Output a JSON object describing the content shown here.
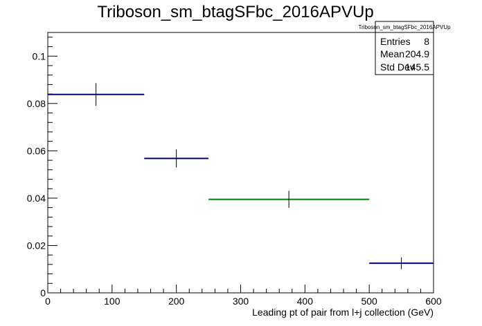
{
  "chart_data": {
    "type": "histogram",
    "title": "Triboson_sm_btagSFbc_2016APVUp",
    "xlabel": "Leading pt of pair from l+j collection (GeV)",
    "ylabel": "",
    "xlim": [
      0,
      600
    ],
    "ylim": [
      0,
      0.11
    ],
    "x_ticks": [
      "0",
      "100",
      "200",
      "300",
      "400",
      "500",
      "600"
    ],
    "y_ticks": [
      "0",
      "0.02",
      "0.04",
      "0.06",
      "0.08",
      "0.1"
    ],
    "bins": [
      {
        "x_low": 0,
        "x_high": 150,
        "value": 0.0838,
        "error": 0.0048,
        "color": "#000080"
      },
      {
        "x_low": 150,
        "x_high": 250,
        "value": 0.0568,
        "error": 0.0038,
        "color": "#000080"
      },
      {
        "x_low": 250,
        "x_high": 500,
        "value": 0.0395,
        "error": 0.0036,
        "color": "#008000"
      },
      {
        "x_low": 500,
        "x_high": 600,
        "value": 0.0125,
        "error": 0.0025,
        "color": "#000080"
      }
    ],
    "stats": {
      "title": "Triboson_sm_btagSFbc_2016APVUp",
      "rows": [
        {
          "label": "Entries",
          "value": "8"
        },
        {
          "label": "Mean",
          "value": "204.9"
        },
        {
          "label": "Std Dev",
          "value": "145.5"
        }
      ]
    }
  }
}
